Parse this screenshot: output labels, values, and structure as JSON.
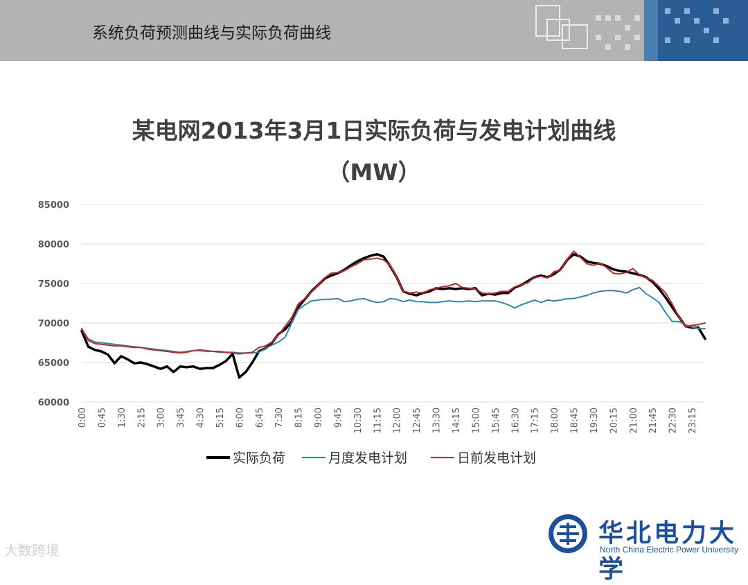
{
  "slide": {
    "header_title": "系统负荷预测曲线与实际负荷曲线",
    "logo_cn": "华北电力大学",
    "logo_en": "North China Electric Power University",
    "watermark": "大数跨境"
  },
  "colors": {
    "header_bg": "#b3b3b3",
    "actual": "#000000",
    "monthly": "#2e86b0",
    "dayahead": "#c0282c",
    "logo_blue": "#1d4f9c"
  },
  "chart_data": {
    "type": "line",
    "title": "某电网2013年3月1日实际负荷与发电计划曲线",
    "subtitle": "（MW）",
    "ylim": [
      60000,
      85000
    ],
    "yticks": [
      "85000",
      "80000",
      "75000",
      "70000",
      "65000",
      "60000"
    ],
    "yticks_values": [
      85000,
      80000,
      75000,
      70000,
      65000,
      60000
    ],
    "xtick_labels": [
      "0:00",
      "0:45",
      "1:30",
      "2:15",
      "3:00",
      "3:45",
      "4:30",
      "5:15",
      "6:00",
      "6:45",
      "7:30",
      "8:15",
      "9:00",
      "9:45",
      "10:30",
      "11:15",
      "12:00",
      "12:45",
      "13:30",
      "14:15",
      "15:00",
      "15:45",
      "16:30",
      "17:15",
      "18:00",
      "18:45",
      "19:30",
      "20:15",
      "21:00",
      "21:45",
      "22:30",
      "23:15"
    ],
    "grid": true,
    "legend_position": "bottom",
    "x": [
      "0:00",
      "0:15",
      "0:30",
      "0:45",
      "1:00",
      "1:15",
      "1:30",
      "1:45",
      "2:00",
      "2:15",
      "2:30",
      "2:45",
      "3:00",
      "3:15",
      "3:30",
      "3:45",
      "4:00",
      "4:15",
      "4:30",
      "4:45",
      "5:00",
      "5:15",
      "5:30",
      "5:45",
      "6:00",
      "6:15",
      "6:30",
      "6:45",
      "7:00",
      "7:15",
      "7:30",
      "7:45",
      "8:00",
      "8:15",
      "8:30",
      "8:45",
      "9:00",
      "9:15",
      "9:30",
      "9:45",
      "10:00",
      "10:15",
      "10:30",
      "10:45",
      "11:00",
      "11:15",
      "11:30",
      "11:45",
      "12:00",
      "12:15",
      "12:30",
      "12:45",
      "13:00",
      "13:15",
      "13:30",
      "13:45",
      "14:00",
      "14:15",
      "14:30",
      "14:45",
      "15:00",
      "15:15",
      "15:30",
      "15:45",
      "16:00",
      "16:15",
      "16:30",
      "16:45",
      "17:00",
      "17:15",
      "17:30",
      "17:45",
      "18:00",
      "18:15",
      "18:30",
      "18:45",
      "19:00",
      "19:15",
      "19:30",
      "19:45",
      "20:00",
      "20:15",
      "20:30",
      "20:45",
      "21:00",
      "21:15",
      "21:30",
      "21:45",
      "22:00",
      "22:15",
      "22:30",
      "22:45",
      "23:00",
      "23:15",
      "23:30",
      "23:45"
    ],
    "series": [
      {
        "name": "实际负荷",
        "color": "#000000",
        "width": 3.5,
        "values": [
          69000,
          67000,
          66600,
          66400,
          66000,
          64900,
          65800,
          65400,
          64900,
          65000,
          64800,
          64500,
          64200,
          64500,
          63800,
          64500,
          64400,
          64500,
          64200,
          64300,
          64300,
          64700,
          65200,
          66100,
          63100,
          63800,
          65000,
          66400,
          66800,
          67500,
          68600,
          69200,
          70200,
          72000,
          73000,
          74000,
          74800,
          75600,
          76000,
          76300,
          76700,
          77300,
          77800,
          78200,
          78500,
          78700,
          78400,
          77200,
          75800,
          74000,
          73700,
          73500,
          73800,
          74000,
          74400,
          74300,
          74400,
          74300,
          74400,
          74300,
          74400,
          73500,
          73700,
          73600,
          73800,
          73800,
          74500,
          74800,
          75300,
          75800,
          76000,
          75800,
          76200,
          76800,
          78000,
          78700,
          78400,
          77800,
          77600,
          77500,
          77200,
          76800,
          76600,
          76500,
          76300,
          76100,
          75800,
          75200,
          74300,
          73200,
          72000,
          70800,
          69600,
          69400,
          69400,
          68000
        ]
      },
      {
        "name": "月度发电计划",
        "color": "#2e86b0",
        "width": 2,
        "values": [
          69200,
          68000,
          67600,
          67500,
          67400,
          67300,
          67200,
          67100,
          67000,
          66900,
          66800,
          66700,
          66600,
          66500,
          66400,
          66300,
          66400,
          66500,
          66500,
          66400,
          66400,
          66300,
          66300,
          66300,
          66200,
          66200,
          66200,
          66300,
          66800,
          67200,
          67600,
          68200,
          70000,
          71700,
          72300,
          72800,
          72900,
          73000,
          73000,
          73100,
          72700,
          72800,
          73000,
          73100,
          72800,
          72600,
          72700,
          73100,
          73000,
          72700,
          72900,
          72700,
          72700,
          72600,
          72600,
          72700,
          72800,
          72700,
          72700,
          72800,
          72700,
          72800,
          72800,
          72800,
          72600,
          72300,
          71900,
          72300,
          72600,
          72900,
          72600,
          72900,
          72800,
          72900,
          73100,
          73100,
          73300,
          73500,
          73800,
          74000,
          74100,
          74100,
          74000,
          73800,
          74200,
          74500,
          73700,
          73200,
          72600,
          71300,
          70200,
          70200,
          69800,
          69500,
          69300,
          69300
        ]
      },
      {
        "name": "日前发电计划",
        "color": "#c0282c",
        "width": 2,
        "values": [
          69300,
          67800,
          67400,
          67300,
          67200,
          67100,
          67100,
          67000,
          66900,
          66900,
          66700,
          66600,
          66500,
          66400,
          66300,
          66200,
          66300,
          66500,
          66600,
          66500,
          66400,
          66400,
          66300,
          66200,
          66100,
          66200,
          66300,
          66900,
          67100,
          67600,
          68500,
          69600,
          70700,
          72400,
          73100,
          73900,
          74800,
          75700,
          76300,
          76400,
          76600,
          77100,
          77500,
          78000,
          78100,
          78200,
          78000,
          77300,
          75800,
          74000,
          73800,
          73900,
          73800,
          74200,
          74400,
          74600,
          74700,
          75000,
          74500,
          74400,
          74300,
          73800,
          73700,
          73800,
          74000,
          74000,
          74600,
          74800,
          75100,
          75800,
          75900,
          75700,
          76500,
          76700,
          78100,
          79100,
          78300,
          77500,
          77300,
          77600,
          77000,
          76300,
          76200,
          76400,
          76900,
          76100,
          75700,
          75400,
          74600,
          73800,
          72400,
          70800,
          69500,
          69700,
          69800,
          70000
        ]
      }
    ]
  }
}
